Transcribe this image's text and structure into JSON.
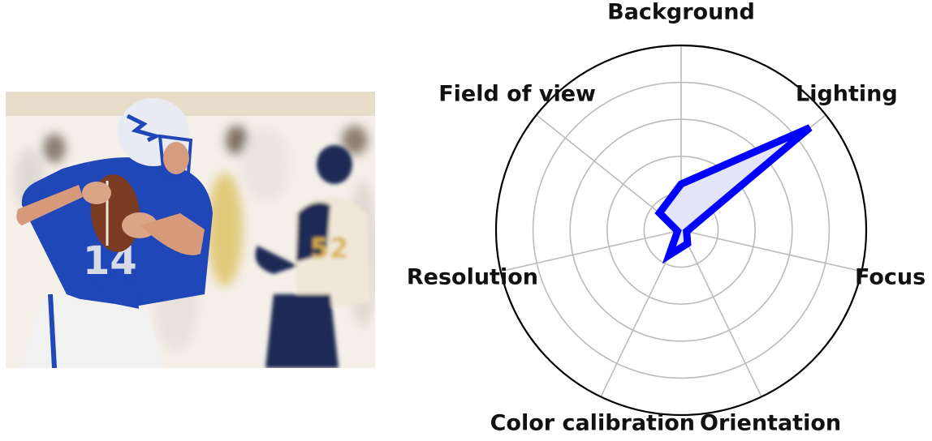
{
  "chart_data": {
    "type": "radar",
    "categories": [
      "Background",
      "Lighting",
      "Focus",
      "Orientation",
      "Color calibration",
      "Resolution",
      "Field of view"
    ],
    "series": [
      {
        "values": [
          0.25,
          0.89,
          0.03,
          0.08,
          0.15,
          0.02,
          0.15
        ],
        "color": "#0000ff",
        "fill": "#e4e4fa"
      }
    ],
    "rlim": [
      0,
      1
    ],
    "grid": true,
    "grid_rings": [
      0.2,
      0.4,
      0.6,
      0.8
    ],
    "grid_color": "#bbbbbb",
    "outline_color": "#000000"
  },
  "photo": {
    "subject": "football-quarterback-photo",
    "jersey_number": "14",
    "colors": {
      "jersey": "#1f47b8",
      "helmet": "#e8ecf2",
      "opponent_jersey": "#1c2a55",
      "opponent_gold": "#e0b84a",
      "background": "#f2ede6"
    }
  }
}
